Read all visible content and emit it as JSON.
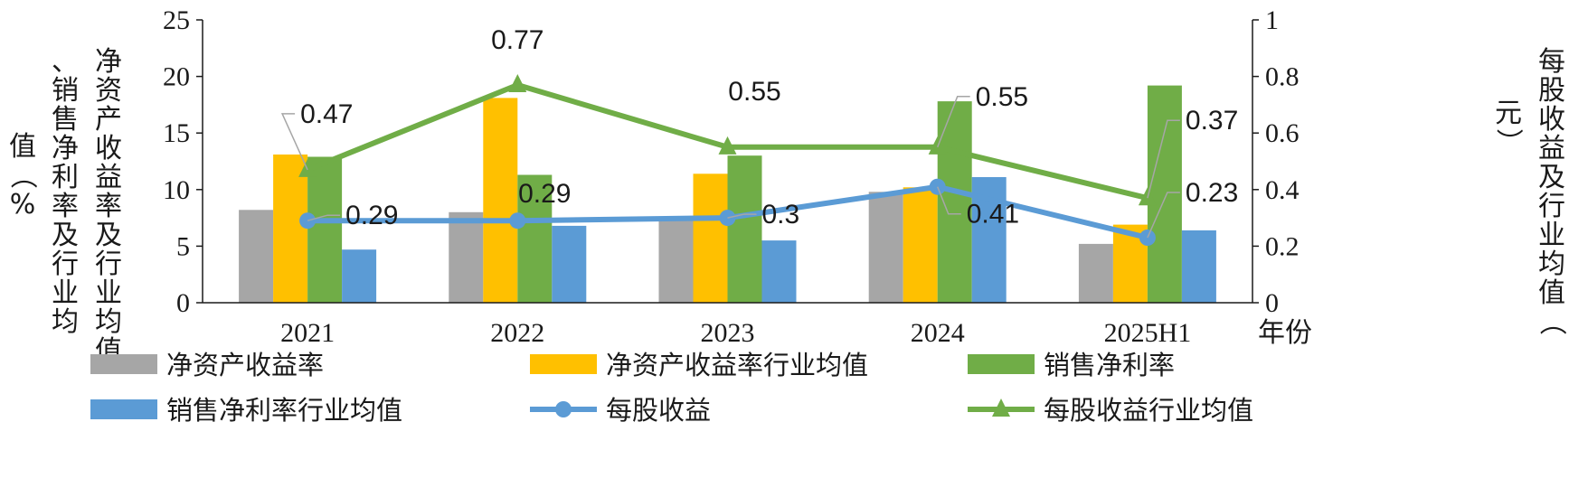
{
  "chart_data": {
    "type": "bar",
    "categories": [
      "2021",
      "2022",
      "2023",
      "2024",
      "2025H1"
    ],
    "xlabel": "年份",
    "ylabel_left": "净资产收益率及行业均值、销售净利率及行业均值（%）",
    "ylabel_right": "每股收益及行业均值（元）",
    "ylim_left": [
      0,
      25
    ],
    "yticks_left": [
      "0",
      "5",
      "10",
      "15",
      "20",
      "25"
    ],
    "ylim_right": [
      0,
      1
    ],
    "yticks_right": [
      "0",
      "0.2",
      "0.4",
      "0.6",
      "0.8",
      "1"
    ],
    "grid": false,
    "legend_position": "bottom",
    "series": [
      {
        "name": "净资产收益率",
        "kind": "bar",
        "axis": "left",
        "color": "#a6a6a6",
        "values": [
          8.2,
          8.0,
          7.6,
          9.8,
          5.2
        ]
      },
      {
        "name": "净资产收益率行业均值",
        "kind": "bar",
        "axis": "left",
        "color": "#ffc000",
        "values": [
          13.1,
          18.1,
          11.4,
          10.2,
          6.9
        ]
      },
      {
        "name": "销售净利率",
        "kind": "bar",
        "axis": "left",
        "color": "#70ad47",
        "values": [
          12.9,
          11.3,
          13.0,
          17.8,
          19.2
        ]
      },
      {
        "name": "销售净利率行业均值",
        "kind": "bar",
        "axis": "left",
        "color": "#5b9bd5",
        "values": [
          4.7,
          6.8,
          5.5,
          11.1,
          6.4
        ]
      },
      {
        "name": "每股收益",
        "kind": "line",
        "marker": "circle",
        "axis": "right",
        "color": "#5b9bd5",
        "values": [
          0.29,
          0.29,
          0.3,
          0.41,
          0.23
        ],
        "labels": [
          "0.29",
          "0.29",
          "0.3",
          "0.41",
          "0.23"
        ]
      },
      {
        "name": "每股收益行业均值",
        "kind": "line",
        "marker": "triangle",
        "axis": "right",
        "color": "#70ad47",
        "values": [
          0.47,
          0.77,
          0.55,
          0.55,
          0.37
        ],
        "labels": [
          "0.47",
          "0.77",
          "0.55",
          "0.55",
          "0.37"
        ]
      }
    ]
  }
}
